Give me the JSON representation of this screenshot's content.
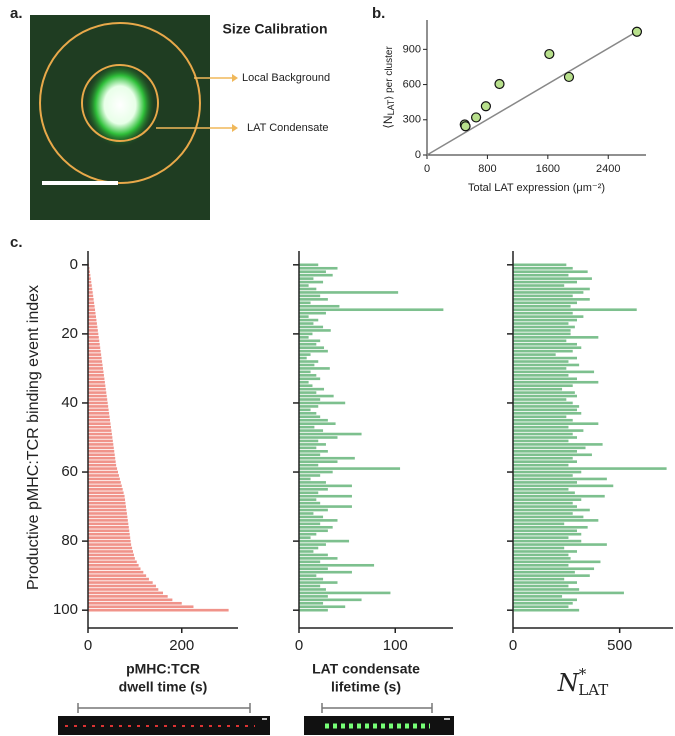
{
  "panel_labels": [
    "a.",
    "b.",
    "c."
  ],
  "panel_a": {
    "title": "Size Calibration",
    "labels": [
      "Local Background",
      "LAT Condensate"
    ]
  },
  "chart_data": [
    {
      "type": "scatter",
      "ylabel": {
        "main": "⟨N",
        "sub": "LAT",
        "rest": "⟩ per cluster"
      },
      "xlabel": "Total LAT expression (μm⁻²)",
      "x": [
        500,
        510,
        650,
        780,
        960,
        1620,
        1880,
        2780
      ],
      "y": [
        260,
        245,
        320,
        415,
        605,
        860,
        665,
        1050
      ],
      "color": "#b8e08c",
      "fit_line": {
        "x": [
          0,
          2800
        ],
        "y": [
          0,
          1060
        ],
        "color": "#888888"
      },
      "xlim": [
        0,
        2900
      ],
      "ylim": [
        0,
        1150
      ],
      "xticks": [
        0,
        800,
        1600,
        2400
      ],
      "yticks": [
        0,
        300,
        600,
        900
      ]
    },
    {
      "type": "barh",
      "ylabel": "Productive pMHC:TCR binding event index",
      "xlabel": [
        "pMHC:TCR",
        "dwell time (s)"
      ],
      "color": "#f0938a",
      "xlim": [
        0,
        320
      ],
      "xticks": [
        0,
        200
      ],
      "ylim": [
        -4,
        104
      ],
      "yticks": [
        0,
        20,
        40,
        60,
        80,
        100
      ],
      "values": [
        2,
        3,
        4,
        5,
        6,
        7,
        8,
        9,
        10,
        11,
        12,
        13,
        14,
        15,
        16,
        17,
        18,
        19,
        20,
        21,
        22,
        23,
        24,
        25,
        26,
        27,
        28,
        29,
        30,
        31,
        32,
        33,
        34,
        35,
        36,
        37,
        38,
        39,
        40,
        41,
        42,
        43,
        44,
        45,
        46,
        47,
        48,
        49,
        50,
        51,
        52,
        53,
        54,
        55,
        56,
        57,
        58,
        59,
        60,
        62,
        64,
        66,
        68,
        70,
        72,
        74,
        76,
        78,
        79,
        80,
        81,
        82,
        83,
        84,
        85,
        86,
        87,
        88,
        89,
        90,
        91,
        92,
        94,
        96,
        98,
        100,
        104,
        108,
        112,
        118,
        124,
        130,
        138,
        145,
        150,
        160,
        170,
        180,
        200,
        225,
        300
      ]
    },
    {
      "type": "barh",
      "xlabel": [
        "LAT condensate",
        "lifetime (s)"
      ],
      "color": "#7dc08e",
      "xlim": [
        0,
        160
      ],
      "xticks": [
        0,
        100
      ],
      "ylim": [
        -4,
        104
      ],
      "yticks": [
        0,
        20,
        40,
        60,
        80,
        100
      ],
      "values": [
        20,
        40,
        28,
        35,
        15,
        25,
        10,
        18,
        103,
        22,
        30,
        12,
        42,
        150,
        28,
        10,
        20,
        15,
        25,
        33,
        14,
        10,
        22,
        18,
        26,
        30,
        12,
        8,
        20,
        16,
        32,
        12,
        18,
        22,
        10,
        14,
        26,
        18,
        36,
        22,
        48,
        20,
        12,
        18,
        22,
        30,
        38,
        16,
        25,
        65,
        40,
        20,
        28,
        18,
        30,
        22,
        58,
        40,
        20,
        105,
        35,
        22,
        12,
        28,
        55,
        30,
        20,
        55,
        18,
        22,
        55,
        30,
        15,
        25,
        40,
        22,
        35,
        30,
        18,
        12,
        52,
        28,
        20,
        15,
        30,
        40,
        22,
        78,
        30,
        55,
        18,
        25,
        40,
        22,
        28,
        95,
        30,
        65,
        25,
        48,
        30
      ]
    },
    {
      "type": "barh",
      "xlabel": {
        "main": "N",
        "sup": "*",
        "sub": "LAT"
      },
      "color": "#7dc08e",
      "xlim": [
        0,
        750
      ],
      "xticks": [
        0,
        500
      ],
      "ylim": [
        -4,
        104
      ],
      "yticks": [
        0,
        20,
        40,
        60,
        80,
        100
      ],
      "values": [
        250,
        280,
        350,
        260,
        370,
        300,
        240,
        360,
        330,
        280,
        360,
        300,
        270,
        580,
        280,
        330,
        300,
        260,
        290,
        270,
        270,
        400,
        250,
        300,
        320,
        280,
        200,
        300,
        260,
        310,
        250,
        380,
        260,
        300,
        400,
        280,
        230,
        290,
        300,
        250,
        280,
        310,
        300,
        320,
        250,
        280,
        400,
        260,
        330,
        280,
        300,
        260,
        420,
        340,
        300,
        370,
        280,
        300,
        260,
        720,
        320,
        280,
        440,
        300,
        470,
        260,
        290,
        430,
        320,
        280,
        300,
        360,
        280,
        330,
        400,
        240,
        350,
        300,
        320,
        260,
        320,
        440,
        240,
        300,
        260,
        270,
        410,
        260,
        380,
        290,
        360,
        240,
        300,
        260,
        310,
        520,
        230,
        300,
        280,
        260,
        310
      ]
    }
  ]
}
